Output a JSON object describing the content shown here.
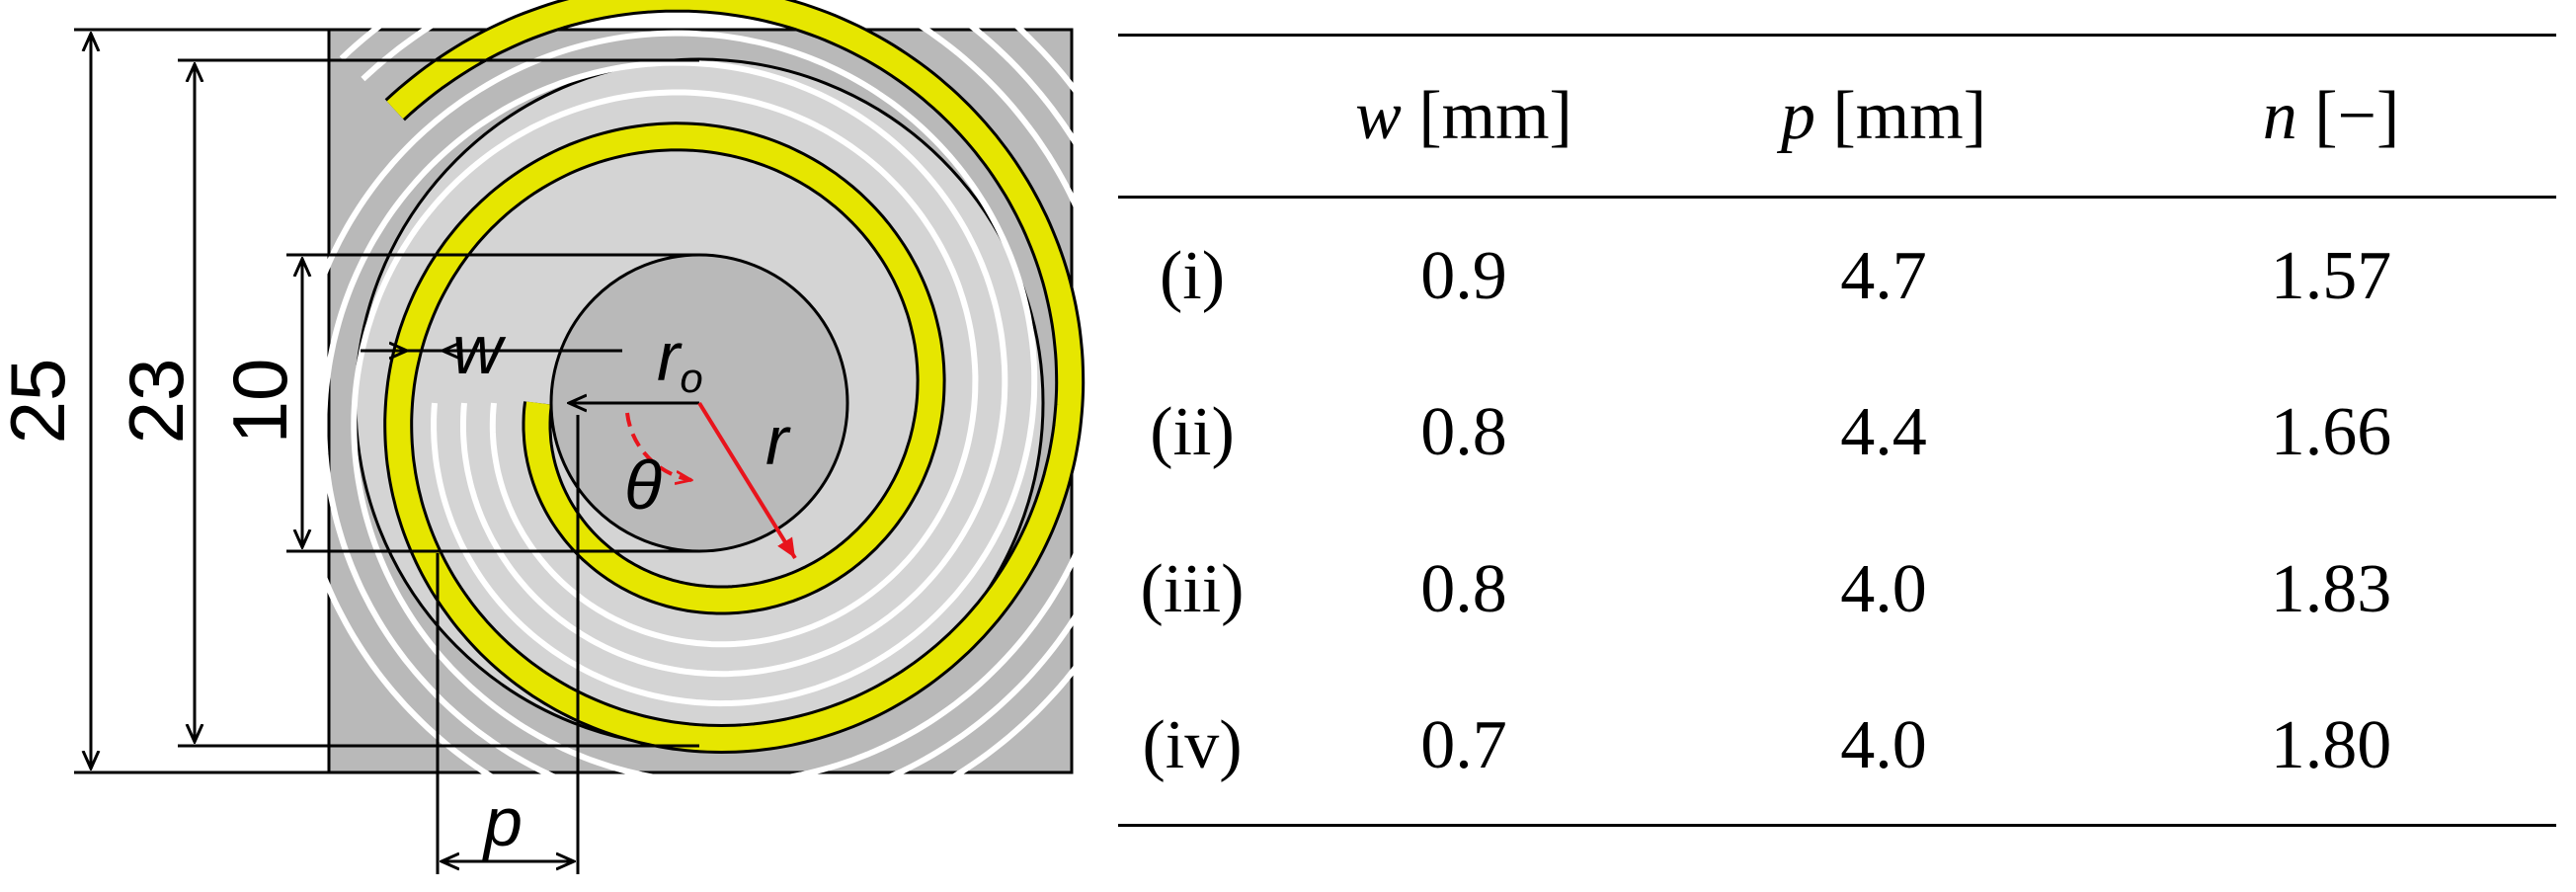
{
  "figure": {
    "dimensions": {
      "outer_width": "25",
      "spiral_outer_diameter": "23",
      "inner_diameter": "10"
    },
    "symbols": {
      "width": "w",
      "pitch": "p",
      "inner_radius_main": "r",
      "inner_radius_sub": "o",
      "radius": "r",
      "angle": "θ"
    },
    "colors": {
      "substrate": "#b9b9b9",
      "disk": "#d4d4d4",
      "conductor": "#e6e600",
      "grooves": "#ffffff",
      "annotation": "#e8141c"
    }
  },
  "table": {
    "headers": [
      {
        "label": "",
        "var": "",
        "unit": ""
      },
      {
        "label": "",
        "var": "w",
        "unit": " [mm]"
      },
      {
        "label": "",
        "var": "p",
        "unit": " [mm]"
      },
      {
        "label": "",
        "var": "n",
        "unit": " [−]"
      }
    ],
    "rows": [
      {
        "label": "(i)",
        "w": "0.9",
        "p": "4.7",
        "n": "1.57"
      },
      {
        "label": "(ii)",
        "w": "0.8",
        "p": "4.4",
        "n": "1.66"
      },
      {
        "label": "(iii)",
        "w": "0.8",
        "p": "4.0",
        "n": "1.83"
      },
      {
        "label": "(iv)",
        "w": "0.7",
        "p": "4.0",
        "n": "1.80"
      }
    ]
  }
}
